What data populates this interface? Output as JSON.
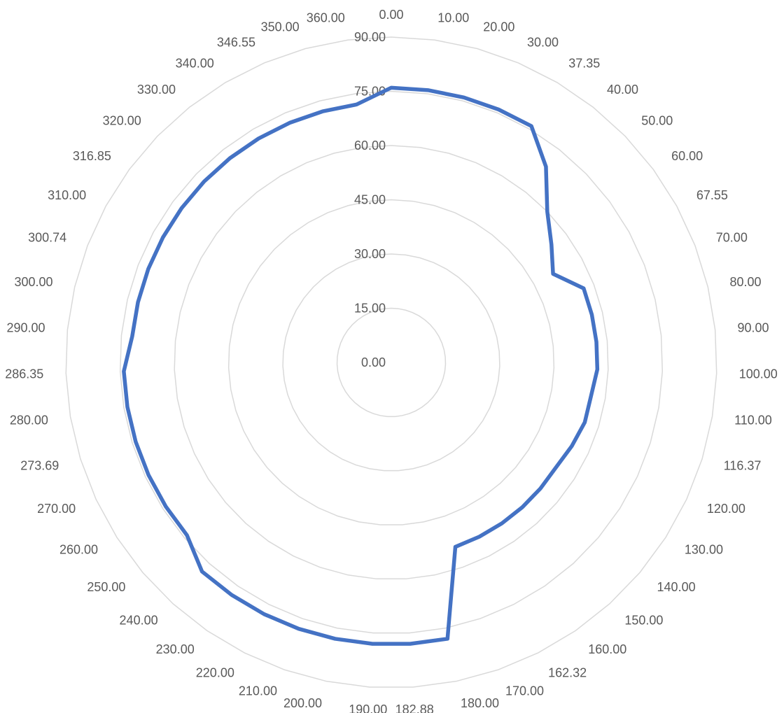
{
  "chart_data": {
    "type": "radar",
    "categories": [
      "0.00",
      "10.00",
      "20.00",
      "30.00",
      "37.35",
      "40.00",
      "50.00",
      "60.00",
      "67.55",
      "70.00",
      "80.00",
      "90.00",
      "100.00",
      "110.00",
      "116.37",
      "120.00",
      "130.00",
      "140.00",
      "150.00",
      "160.00",
      "162.32",
      "170.00",
      "180.00",
      "182.88",
      "190.00",
      "200.00",
      "210.00",
      "220.00",
      "230.00",
      "240.00",
      "250.00",
      "260.00",
      "270.00",
      "273.69",
      "280.00",
      "286.35",
      "290.00",
      "300.00",
      "300.74",
      "310.00",
      "316.85",
      "320.00",
      "330.00",
      "340.00",
      "346.55",
      "350.00",
      "360.00"
    ],
    "series": [
      {
        "values": [
          76,
          76,
          76,
          76,
          76,
          69,
          60,
          55,
          51,
          57,
          57,
          57,
          57,
          56,
          56,
          55,
          54,
          54,
          54,
          54,
          54,
          54,
          78,
          78,
          78,
          78,
          78,
          78,
          78,
          78,
          74,
          74,
          74,
          74,
          74,
          74,
          72,
          72,
          72,
          72,
          72,
          72,
          72,
          72,
          72,
          72,
          72
        ]
      }
    ],
    "ticks": [
      "0.00",
      "15.00",
      "30.00",
      "45.00",
      "60.00",
      "75.00",
      "90.00"
    ],
    "rlim": [
      0,
      90
    ],
    "grid": true,
    "legend": "none",
    "colors": {
      "series": "#4472c4",
      "grid": "#d9d9d9",
      "text": "#595959"
    }
  }
}
